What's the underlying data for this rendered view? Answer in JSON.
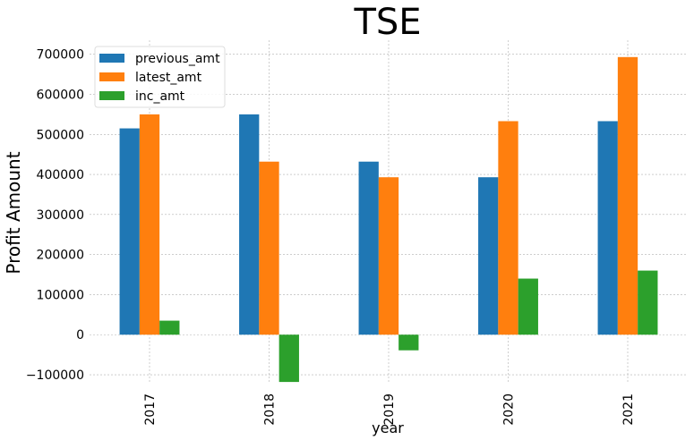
{
  "chart_data": {
    "type": "bar",
    "title": "TSE",
    "xlabel": "year",
    "ylabel": "Profit Amount",
    "categories": [
      "2017",
      "2018",
      "2019",
      "2020",
      "2021"
    ],
    "series": [
      {
        "name": "previous_amt",
        "color": "#1f77b4",
        "values": [
          515000,
          550000,
          432000,
          393000,
          533000
        ]
      },
      {
        "name": "latest_amt",
        "color": "#ff7f0e",
        "values": [
          550000,
          432000,
          393000,
          533000,
          693000
        ]
      },
      {
        "name": "inc_amt",
        "color": "#2ca02c",
        "values": [
          35000,
          -118000,
          -39000,
          140000,
          160000
        ]
      }
    ],
    "yticks": [
      -100000,
      0,
      100000,
      200000,
      300000,
      400000,
      500000,
      600000,
      700000
    ],
    "ytick_labels": [
      "−100000",
      "0",
      "100000",
      "200000",
      "300000",
      "400000",
      "500000",
      "600000",
      "700000"
    ],
    "ylim": [
      -120000,
      735000
    ],
    "grid": true,
    "legend_position": "top-left"
  }
}
